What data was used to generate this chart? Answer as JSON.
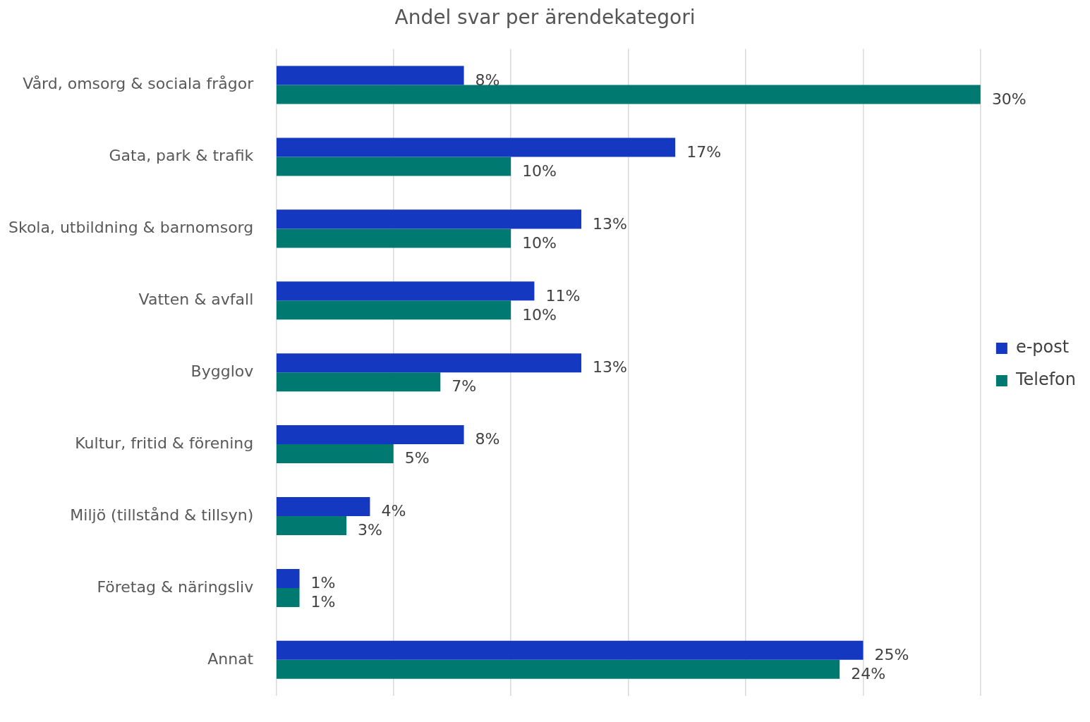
{
  "chart_data": {
    "type": "bar",
    "orientation": "horizontal",
    "title": "Andel svar per ärendekategori",
    "categories": [
      "Vård, omsorg & sociala frågor",
      "Gata, park & trafik",
      "Skola, utbildning & barnomsorg",
      "Vatten & avfall",
      "Bygglov",
      "Kultur, fritid & förening",
      "Miljö (tillstånd & tillsyn)",
      "Företag & näringsliv",
      "Annat"
    ],
    "series": [
      {
        "name": "e-post",
        "color": "#1438c0",
        "values": [
          8,
          17,
          13,
          11,
          13,
          8,
          4,
          1,
          25
        ],
        "value_labels": [
          "8%",
          "17%",
          "13%",
          "11%",
          "13%",
          "8%",
          "4%",
          "1%",
          "25%"
        ]
      },
      {
        "name": "Telefon",
        "color": "#007a70",
        "values": [
          30,
          10,
          10,
          10,
          7,
          5,
          3,
          1,
          24
        ],
        "value_labels": [
          "30%",
          "10%",
          "10%",
          "10%",
          "7%",
          "5%",
          "3%",
          "1%",
          "24%"
        ]
      }
    ],
    "tick_labels": "y",
    "grid": "x",
    "legend": "right"
  }
}
